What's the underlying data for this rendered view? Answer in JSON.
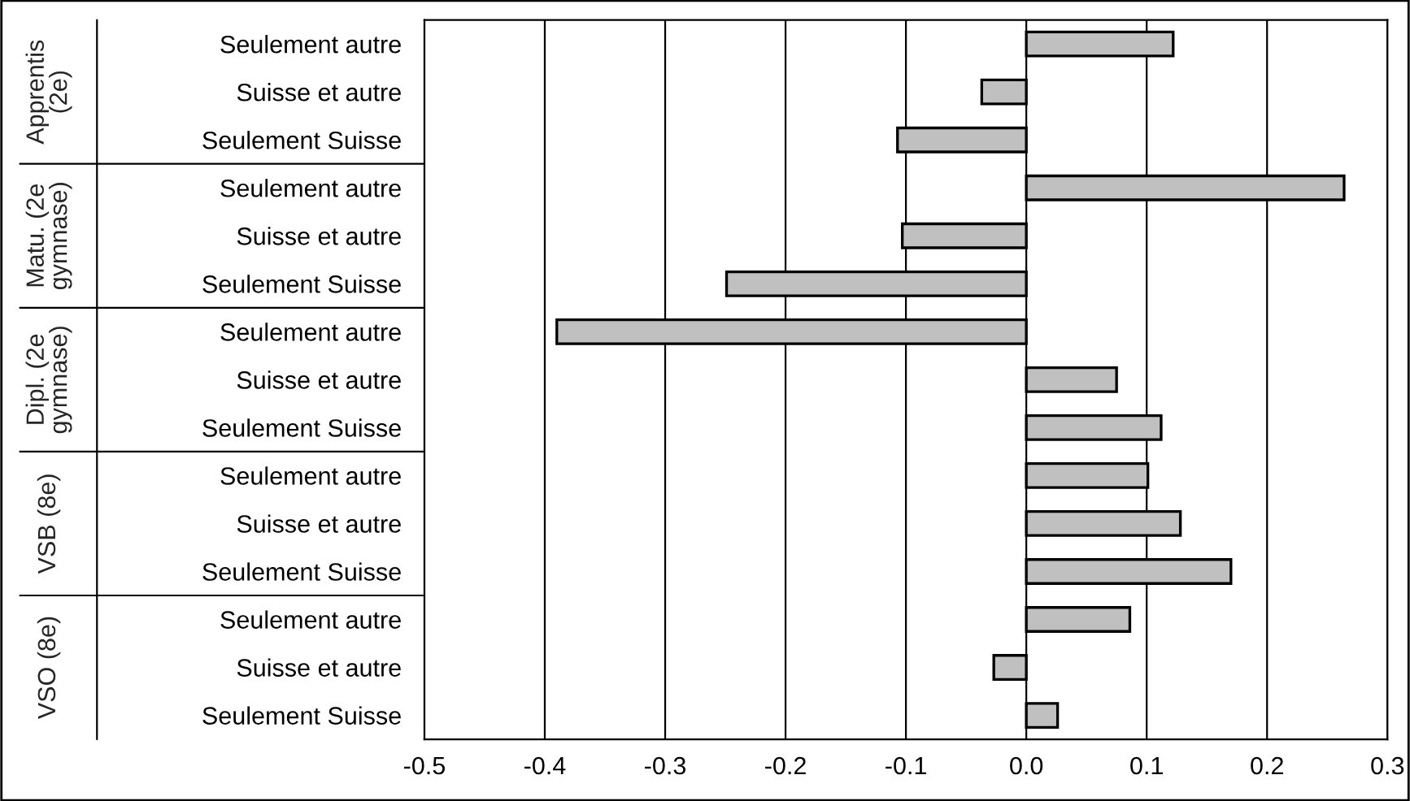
{
  "chart_data": {
    "type": "bar",
    "orientation": "horizontal",
    "categories": [
      "Seulement autre",
      "Suisse et autre",
      "Seulement Suisse",
      "Seulement autre",
      "Suisse et autre",
      "Seulement Suisse",
      "Seulement autre",
      "Suisse et autre",
      "Seulement Suisse",
      "Seulement autre",
      "Suisse et autre",
      "Seulement Suisse",
      "Seulement autre",
      "Suisse et autre",
      "Seulement Suisse"
    ],
    "values": [
      0.122,
      -0.037,
      -0.107,
      0.264,
      -0.103,
      -0.249,
      -0.39,
      0.075,
      0.112,
      0.101,
      0.128,
      0.17,
      0.086,
      -0.027,
      0.026
    ],
    "color": "#c0c0c0",
    "annotations": [
      "Apprentis\n(2e)",
      "Matu. (2e\ngymnase)",
      "Dipl. (2e\ngymnase)",
      "VSB (8e)",
      "VSO (8e)"
    ],
    "xlim": [
      -0.5,
      0.3
    ],
    "xticks": [
      {
        "value": -0.5,
        "label": "-0.5"
      },
      {
        "value": -0.4,
        "label": "-0.4"
      },
      {
        "value": -0.3,
        "label": "-0.3"
      },
      {
        "value": -0.2,
        "label": "-0.2"
      },
      {
        "value": -0.1,
        "label": "-0.1"
      },
      {
        "value": 0.0,
        "label": "0.0"
      },
      {
        "value": 0.1,
        "label": "0.1"
      },
      {
        "value": 0.2,
        "label": "0.2"
      },
      {
        "value": 0.3,
        "label": "0.3"
      }
    ],
    "grid": "x"
  }
}
